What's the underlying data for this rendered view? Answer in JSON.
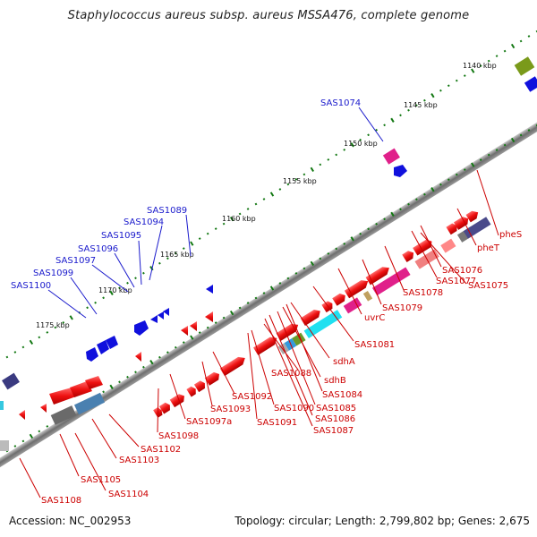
{
  "title": "Staphylococcus aureus subsp. aureus MSSA476, complete genome",
  "accession_text": "Accession: NC_002953",
  "summary_text": "Topology: circular; Length: 2,799,802 bp; Genes: 2,675",
  "colors": {
    "forward_arrow": "#ee1111",
    "reverse_arrow": "#1010dd",
    "forward_label": "#cc0000",
    "reverse_label": "#1a1acc",
    "backbone": "#808080",
    "tick": "#117711"
  },
  "kbp_labels": [
    "1140 kbp",
    "1145 kbp",
    "1150 kbp",
    "1155 kbp",
    "1160 kbp",
    "1165 kbp",
    "1170 kbp",
    "1175 kbp"
  ],
  "reverse_gene_labels": [
    "SAS1074",
    "SAS1089",
    "SAS1094",
    "SAS1095",
    "SAS1096",
    "SAS1097",
    "SAS1099",
    "SAS1100"
  ],
  "forward_gene_labels": [
    "pheS",
    "pheT",
    "SAS1076",
    "SAS1077",
    "SAS1075",
    "SAS1078",
    "SAS1079",
    "uvrC",
    "SAS1081",
    "sdhA",
    "SAS1088",
    "SAS1084",
    "sdhB",
    "SAS1085",
    "SAS1086",
    "SAS1087",
    "SAS1092",
    "SAS1090",
    "SAS1093",
    "SAS1091",
    "SAS1097a",
    "SAS1098",
    "SAS1102",
    "SAS1103",
    "SAS1105",
    "SAS1104",
    "SAS1108"
  ]
}
